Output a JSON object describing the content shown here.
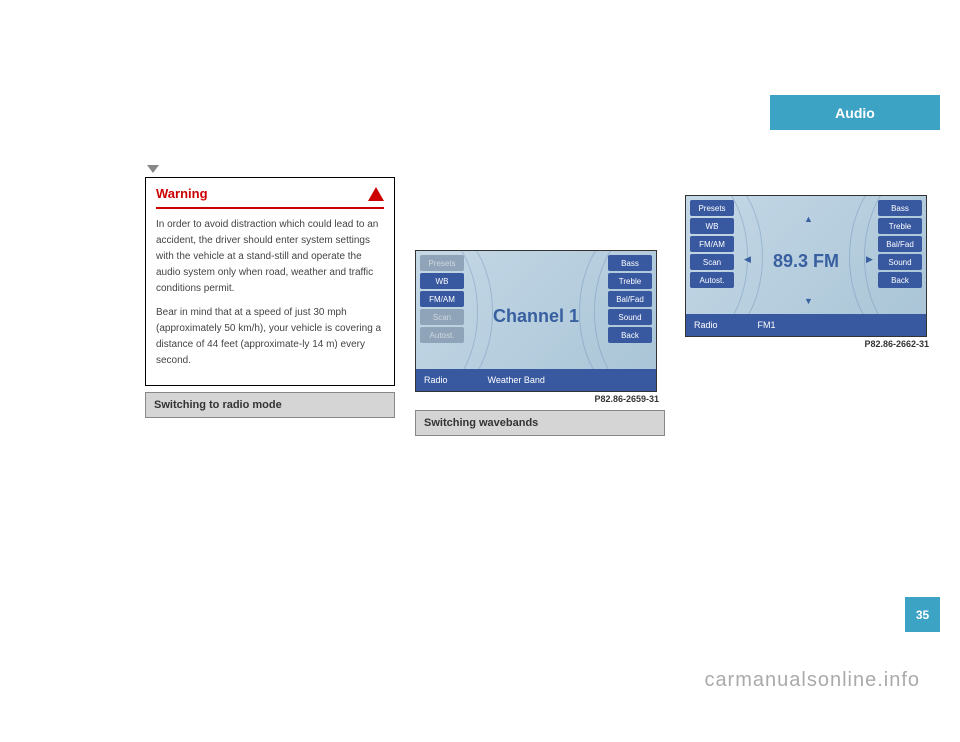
{
  "chapter": "Audio",
  "page_number": "35",
  "watermark": "carmanualsonline.info",
  "warning": {
    "title": "Warning",
    "para1": "In order to avoid distraction which could lead to an accident, the driver should enter system settings with the vehicle at a stand-still and operate the audio system only when road, weather and traffic conditions permit.",
    "para2": "Bear in mind that at a speed of just 30 mph (approximately 50 km/h), your vehicle is covering a distance of 44 feet (approximate-ly 14 m) every second."
  },
  "section1_title": "Switching to radio mode",
  "section2_title": "Switching wavebands",
  "display1": {
    "left_buttons": [
      "Presets",
      "WB",
      "FM/AM",
      "Scan",
      "Autost."
    ],
    "left_dim": [
      true,
      false,
      false,
      true,
      true
    ],
    "right_buttons": [
      "Bass",
      "Treble",
      "Bal/Fad",
      "Sound",
      "Back"
    ],
    "main_text": "Channel 1",
    "status_left": "Radio",
    "status_right": "Weather Band",
    "caption": "P82.86-2659-31"
  },
  "display2": {
    "left_buttons": [
      "Presets",
      "WB",
      "FM/AM",
      "Scan",
      "Autost."
    ],
    "left_dim": [
      false,
      false,
      false,
      false,
      false
    ],
    "right_buttons": [
      "Bass",
      "Treble",
      "Bal/Fad",
      "Sound",
      "Back"
    ],
    "main_text": "89.3 FM",
    "status_left": "Radio",
    "status_right": "FM1",
    "caption": "P82.86-2662-31"
  },
  "colors": {
    "tab_bg": "#3da3c5",
    "btn_bg": "#3858a0",
    "btn_dim": "#8fa4b8",
    "warning_red": "#cc0000",
    "section_bg": "#d5d5d5",
    "display_grad_start": "#c5d8e6",
    "display_grad_end": "#a8c4d6"
  }
}
